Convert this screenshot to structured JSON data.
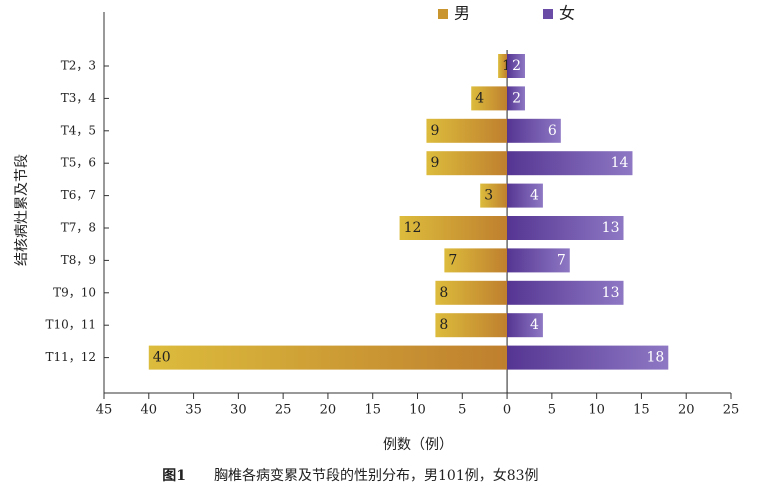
{
  "chart_data": {
    "type": "butterfly",
    "xlabel": "例数（例）",
    "ylabel": "结核病灶累及节段",
    "caption_label": "图1",
    "caption": "胸椎各病变累及节段的性别分布，男101例，女83例",
    "categories": [
      "T2，3",
      "T3，4",
      "T4，5",
      "T5，6",
      "T6，7",
      "T7，8",
      "T8，9",
      "T9，10",
      "T10，11",
      "T11，12"
    ],
    "series": [
      {
        "name": "男",
        "color": "#c8952f",
        "values": [
          1,
          4,
          9,
          9,
          3,
          12,
          7,
          8,
          8,
          40
        ]
      },
      {
        "name": "女",
        "color": "#6a4ca6",
        "values": [
          2,
          2,
          6,
          14,
          4,
          13,
          7,
          13,
          4,
          18
        ]
      }
    ],
    "xlim": [
      -45,
      25
    ],
    "xticks": [
      {
        "value": -45,
        "label": "45"
      },
      {
        "value": -40,
        "label": "40"
      },
      {
        "value": -35,
        "label": "35"
      },
      {
        "value": -30,
        "label": "30"
      },
      {
        "value": -25,
        "label": "25"
      },
      {
        "value": -20,
        "label": "20"
      },
      {
        "value": -15,
        "label": "15"
      },
      {
        "value": -10,
        "label": "10"
      },
      {
        "value": -5,
        "label": "5"
      },
      0,
      5,
      10,
      15,
      20,
      25
    ],
    "legend": "top"
  }
}
